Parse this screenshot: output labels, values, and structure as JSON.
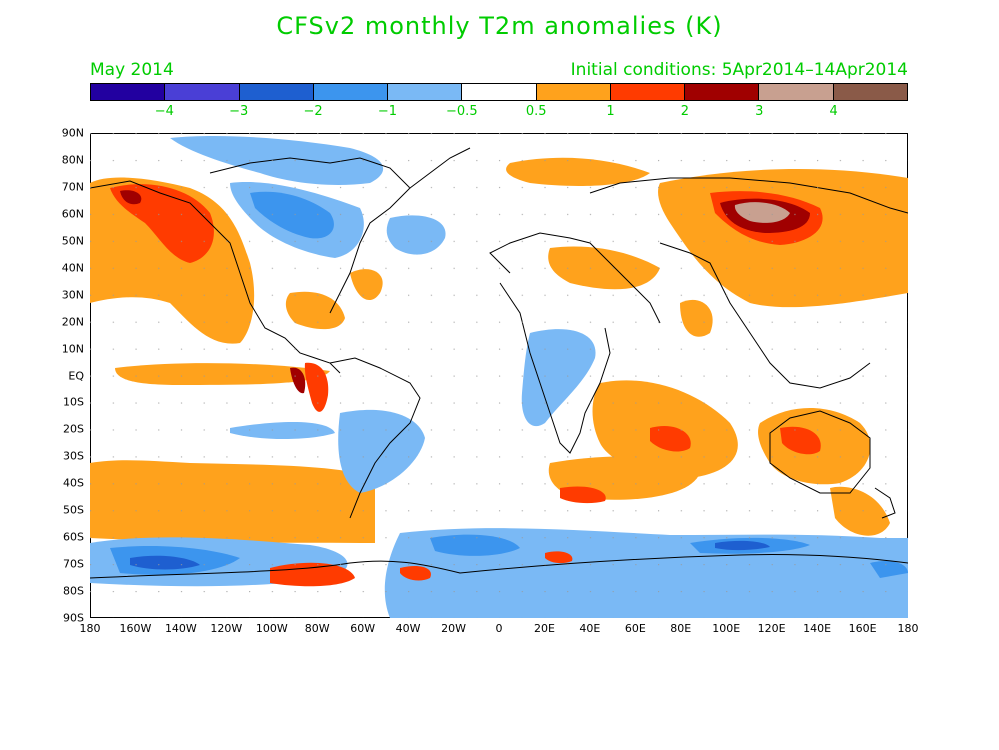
{
  "title": "CFSv2 monthly T2m anomalies (K)",
  "month": "May 2014",
  "initial_conditions": "Initial conditions: 5Apr2014–14Apr2014",
  "colorbar": {
    "colors": [
      "#2200a0",
      "#4a3fd6",
      "#1e5fd0",
      "#3c95ee",
      "#7ab9f5",
      "#ffffff",
      "#ffa21c",
      "#ff3b00",
      "#a00000",
      "#c8a090",
      "#8a5a48"
    ],
    "labels": [
      "−4",
      "−3",
      "−2",
      "−1",
      "−0.5",
      "0.5",
      "1",
      "2",
      "3",
      "4"
    ]
  },
  "axes": {
    "lat_labels": [
      "90N",
      "80N",
      "70N",
      "60N",
      "50N",
      "40N",
      "30N",
      "20N",
      "10N",
      "EQ",
      "10S",
      "20S",
      "30S",
      "40S",
      "50S",
      "60S",
      "70S",
      "80S",
      "90S"
    ],
    "lon_labels": [
      "180",
      "160W",
      "140W",
      "120W",
      "100W",
      "80W",
      "60W",
      "40W",
      "20W",
      "0",
      "20E",
      "40E",
      "60E",
      "80E",
      "100E",
      "120E",
      "140E",
      "160E",
      "180"
    ]
  }
}
